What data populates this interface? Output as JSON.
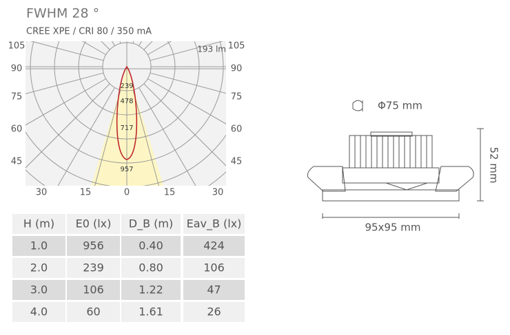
{
  "header": {
    "title": "FWHM  28 °",
    "subtitle": "CREE XPE  / CRI 80 / 350 mA"
  },
  "polar": {
    "flux_label": "193 lm",
    "left_angle_labels": [
      "105",
      "90",
      "75",
      "60",
      "45"
    ],
    "right_angle_labels": [
      "105",
      "90",
      "75",
      "60",
      "45"
    ],
    "bottom_labels": [
      "30",
      "15",
      "0",
      "15",
      "30"
    ],
    "ring_labels": [
      "239",
      "478",
      "717",
      "957"
    ]
  },
  "table": {
    "header": [
      "H (m)",
      "E0 (lx)",
      "D_B (m)",
      "Eav_B (lx)"
    ],
    "rows": [
      [
        "1.0",
        "956",
        "0.40",
        "424"
      ],
      [
        "2.0",
        "239",
        "0.80",
        "106"
      ],
      [
        "3.0",
        "106",
        "1.22",
        "47"
      ],
      [
        "4.0",
        "60",
        "1.61",
        "26"
      ]
    ]
  },
  "drawing": {
    "diameter": "Φ75 mm",
    "height": "52 mm",
    "width": "95x95 mm"
  }
}
